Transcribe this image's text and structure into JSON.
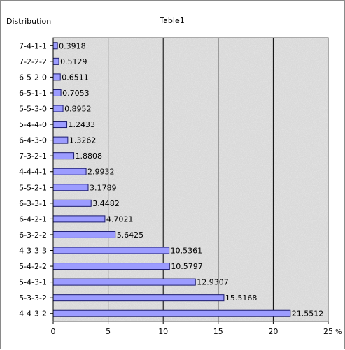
{
  "chart_data": {
    "type": "bar",
    "orientation": "horizontal",
    "title": "Table1",
    "ylabel": "Distribution",
    "xunit": "%",
    "categories": [
      "7-4-1-1",
      "7-2-2-2",
      "6-5-2-0",
      "6-5-1-1",
      "5-5-3-0",
      "5-4-4-0",
      "6-4-3-0",
      "7-3-2-1",
      "4-4-4-1",
      "5-5-2-1",
      "6-3-3-1",
      "6-4-2-1",
      "6-3-2-2",
      "4-3-3-3",
      "5-4-2-2",
      "5-4-3-1",
      "5-3-3-2",
      "4-4-3-2"
    ],
    "values": [
      0.3918,
      0.5129,
      0.6511,
      0.7053,
      0.8952,
      1.2433,
      1.3262,
      1.8808,
      2.9932,
      3.1789,
      3.4482,
      4.7021,
      5.6425,
      10.5361,
      10.5797,
      12.9307,
      15.5168,
      21.5512
    ],
    "value_labels": [
      "0.3918",
      "0.5129",
      "0.6511",
      "0.7053",
      "0.8952",
      "1.2433",
      "1.3262",
      "1.8808",
      "2.9932",
      "3.1789",
      "3.4482",
      "4.7021",
      "5.6425",
      "10.5361",
      "10.5797",
      "12.9307",
      "15.5168",
      "21.5512"
    ],
    "xlim": [
      0,
      25
    ],
    "xticks": [
      "0",
      "5",
      "10",
      "15",
      "20",
      "25"
    ],
    "grid": "vertical lines at major ticks",
    "legend": "none",
    "colors": {
      "bar_fill": "#9c9cff",
      "bar_stroke": "#1a1a6e",
      "plot_background": "#d9d9d9",
      "gridline": "#000000"
    }
  }
}
